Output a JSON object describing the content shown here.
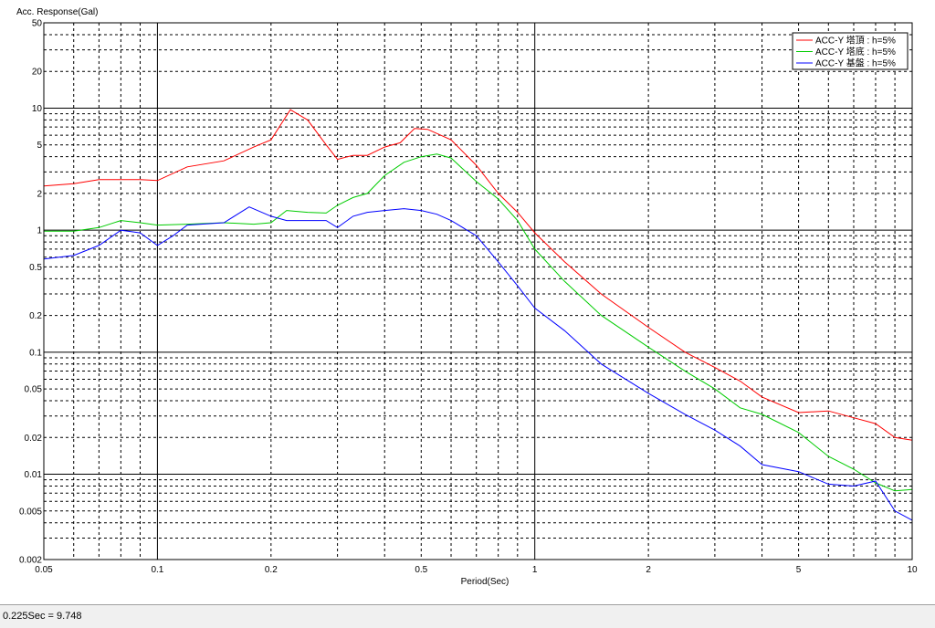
{
  "chart_data": {
    "type": "line",
    "title": "",
    "ylabel": "Acc. Response(Gal)",
    "xlabel": "Period(Sec)",
    "xscale": "log",
    "yscale": "log",
    "xlim": [
      0.05,
      10
    ],
    "ylim": [
      0.002,
      50
    ],
    "grid": true,
    "legend_position": "top-right",
    "x_tick_labels": [
      "0.05",
      "0.1",
      "0.2",
      "0.5",
      "1",
      "2",
      "5",
      "10"
    ],
    "y_tick_labels": [
      "0.002",
      "0.005",
      "0.01",
      "0.02",
      "0.05",
      "0.1",
      "0.2",
      "0.5",
      "1",
      "2",
      "5",
      "10",
      "20",
      "50"
    ],
    "series": [
      {
        "name": "ACC-Y 塔頂 : h=5%",
        "color": "#ff0000",
        "points": [
          [
            0.05,
            2.3
          ],
          [
            0.06,
            2.4
          ],
          [
            0.07,
            2.6
          ],
          [
            0.08,
            2.6
          ],
          [
            0.09,
            2.6
          ],
          [
            0.1,
            2.55
          ],
          [
            0.12,
            3.3
          ],
          [
            0.15,
            3.7
          ],
          [
            0.18,
            4.8
          ],
          [
            0.2,
            5.5
          ],
          [
            0.225,
            9.7
          ],
          [
            0.25,
            8.0
          ],
          [
            0.28,
            5.0
          ],
          [
            0.3,
            3.8
          ],
          [
            0.33,
            4.1
          ],
          [
            0.36,
            4.1
          ],
          [
            0.4,
            4.8
          ],
          [
            0.44,
            5.2
          ],
          [
            0.48,
            6.8
          ],
          [
            0.52,
            6.7
          ],
          [
            0.6,
            5.5
          ],
          [
            0.7,
            3.4
          ],
          [
            0.8,
            2.0
          ],
          [
            0.9,
            1.4
          ],
          [
            1.0,
            0.95
          ],
          [
            1.2,
            0.55
          ],
          [
            1.5,
            0.3
          ],
          [
            2.0,
            0.16
          ],
          [
            2.5,
            0.1
          ],
          [
            3.0,
            0.075
          ],
          [
            3.5,
            0.058
          ],
          [
            4.0,
            0.043
          ],
          [
            5.0,
            0.032
          ],
          [
            6.0,
            0.033
          ],
          [
            7.0,
            0.029
          ],
          [
            8.0,
            0.026
          ],
          [
            9.0,
            0.02
          ],
          [
            10.0,
            0.019
          ]
        ]
      },
      {
        "name": "ACC-Y 塔底 : h=5%",
        "color": "#00cc00",
        "points": [
          [
            0.05,
            0.98
          ],
          [
            0.06,
            0.98
          ],
          [
            0.07,
            1.05
          ],
          [
            0.08,
            1.2
          ],
          [
            0.09,
            1.15
          ],
          [
            0.1,
            1.1
          ],
          [
            0.12,
            1.12
          ],
          [
            0.15,
            1.15
          ],
          [
            0.18,
            1.12
          ],
          [
            0.2,
            1.15
          ],
          [
            0.22,
            1.45
          ],
          [
            0.25,
            1.4
          ],
          [
            0.28,
            1.38
          ],
          [
            0.3,
            1.6
          ],
          [
            0.33,
            1.85
          ],
          [
            0.36,
            2.0
          ],
          [
            0.4,
            2.8
          ],
          [
            0.45,
            3.6
          ],
          [
            0.5,
            4.0
          ],
          [
            0.55,
            4.2
          ],
          [
            0.6,
            3.9
          ],
          [
            0.7,
            2.5
          ],
          [
            0.8,
            1.8
          ],
          [
            0.9,
            1.2
          ],
          [
            1.0,
            0.7
          ],
          [
            1.2,
            0.38
          ],
          [
            1.5,
            0.2
          ],
          [
            2.0,
            0.11
          ],
          [
            2.5,
            0.07
          ],
          [
            3.0,
            0.05
          ],
          [
            3.5,
            0.035
          ],
          [
            4.0,
            0.031
          ],
          [
            5.0,
            0.022
          ],
          [
            6.0,
            0.014
          ],
          [
            7.0,
            0.011
          ],
          [
            8.0,
            0.0085
          ],
          [
            9.0,
            0.0073
          ],
          [
            10.0,
            0.0075
          ]
        ]
      },
      {
        "name": "ACC-Y 基盤 : h=5%",
        "color": "#0000ff",
        "points": [
          [
            0.05,
            0.58
          ],
          [
            0.06,
            0.62
          ],
          [
            0.07,
            0.75
          ],
          [
            0.08,
            1.0
          ],
          [
            0.09,
            0.95
          ],
          [
            0.1,
            0.75
          ],
          [
            0.11,
            0.9
          ],
          [
            0.12,
            1.1
          ],
          [
            0.15,
            1.15
          ],
          [
            0.175,
            1.55
          ],
          [
            0.2,
            1.3
          ],
          [
            0.22,
            1.2
          ],
          [
            0.25,
            1.2
          ],
          [
            0.28,
            1.2
          ],
          [
            0.3,
            1.05
          ],
          [
            0.33,
            1.3
          ],
          [
            0.36,
            1.4
          ],
          [
            0.4,
            1.45
          ],
          [
            0.45,
            1.5
          ],
          [
            0.5,
            1.45
          ],
          [
            0.55,
            1.35
          ],
          [
            0.6,
            1.2
          ],
          [
            0.7,
            0.9
          ],
          [
            0.8,
            0.55
          ],
          [
            0.9,
            0.35
          ],
          [
            1.0,
            0.23
          ],
          [
            1.2,
            0.15
          ],
          [
            1.5,
            0.08
          ],
          [
            2.0,
            0.046
          ],
          [
            2.5,
            0.031
          ],
          [
            3.0,
            0.023
          ],
          [
            3.5,
            0.017
          ],
          [
            4.0,
            0.012
          ],
          [
            5.0,
            0.0105
          ],
          [
            6.0,
            0.0083
          ],
          [
            7.0,
            0.008
          ],
          [
            8.0,
            0.0088
          ],
          [
            9.0,
            0.005
          ],
          [
            10.0,
            0.0042
          ]
        ]
      }
    ]
  },
  "status": {
    "readout": "0.225Sec = 9.748"
  }
}
